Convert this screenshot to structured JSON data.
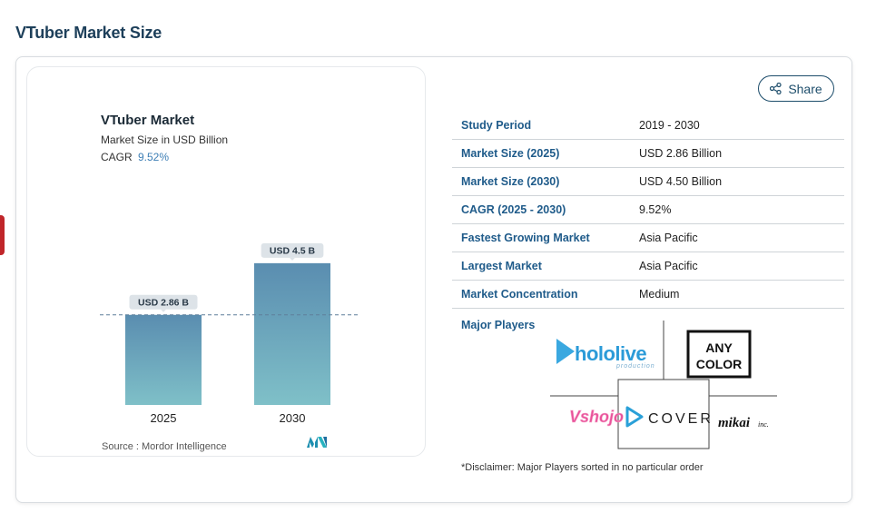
{
  "page": {
    "title": "VTuber Market Size"
  },
  "chart_data": {
    "type": "bar",
    "title": "VTuber Market",
    "subtitle": "Market Size in USD Billion",
    "cagr_label": "CAGR",
    "cagr_value": "9.52%",
    "categories": [
      "2025",
      "2030"
    ],
    "values": [
      2.86,
      4.5
    ],
    "data_labels": [
      "USD 2.86 B",
      "USD 4.5 B"
    ],
    "ylim": [
      0,
      4.9
    ],
    "reference_line": 2.86,
    "source": "Source :  Mordor Intelligence",
    "bar_color_top": "#5a8db0",
    "bar_color_bottom": "#7fc0c8"
  },
  "share": {
    "label": "Share",
    "icon": "share-icon"
  },
  "stats": [
    {
      "key": "Study Period",
      "value": "2019 - 2030"
    },
    {
      "key": "Market Size (2025)",
      "value": "USD 2.86 Billion"
    },
    {
      "key": "Market Size (2030)",
      "value": "USD 4.50 Billion"
    },
    {
      "key": "CAGR (2025 - 2030)",
      "value": "9.52%"
    },
    {
      "key": "Fastest Growing Market",
      "value": "Asia Pacific"
    },
    {
      "key": "Largest Market",
      "value": "Asia Pacific"
    },
    {
      "key": "Market Concentration",
      "value": "Medium"
    }
  ],
  "players": {
    "label": "Major Players",
    "logos": {
      "hololive": "hololive",
      "hololive_sub": "production",
      "anycolor_line1": "ANY",
      "anycolor_line2": "COLOR",
      "vshojo": "Vshojo",
      "cover": "COVER",
      "mikai": "mikai",
      "mikai_suffix": "inc."
    }
  },
  "disclaimer": "*Disclaimer: Major Players sorted in no particular order"
}
